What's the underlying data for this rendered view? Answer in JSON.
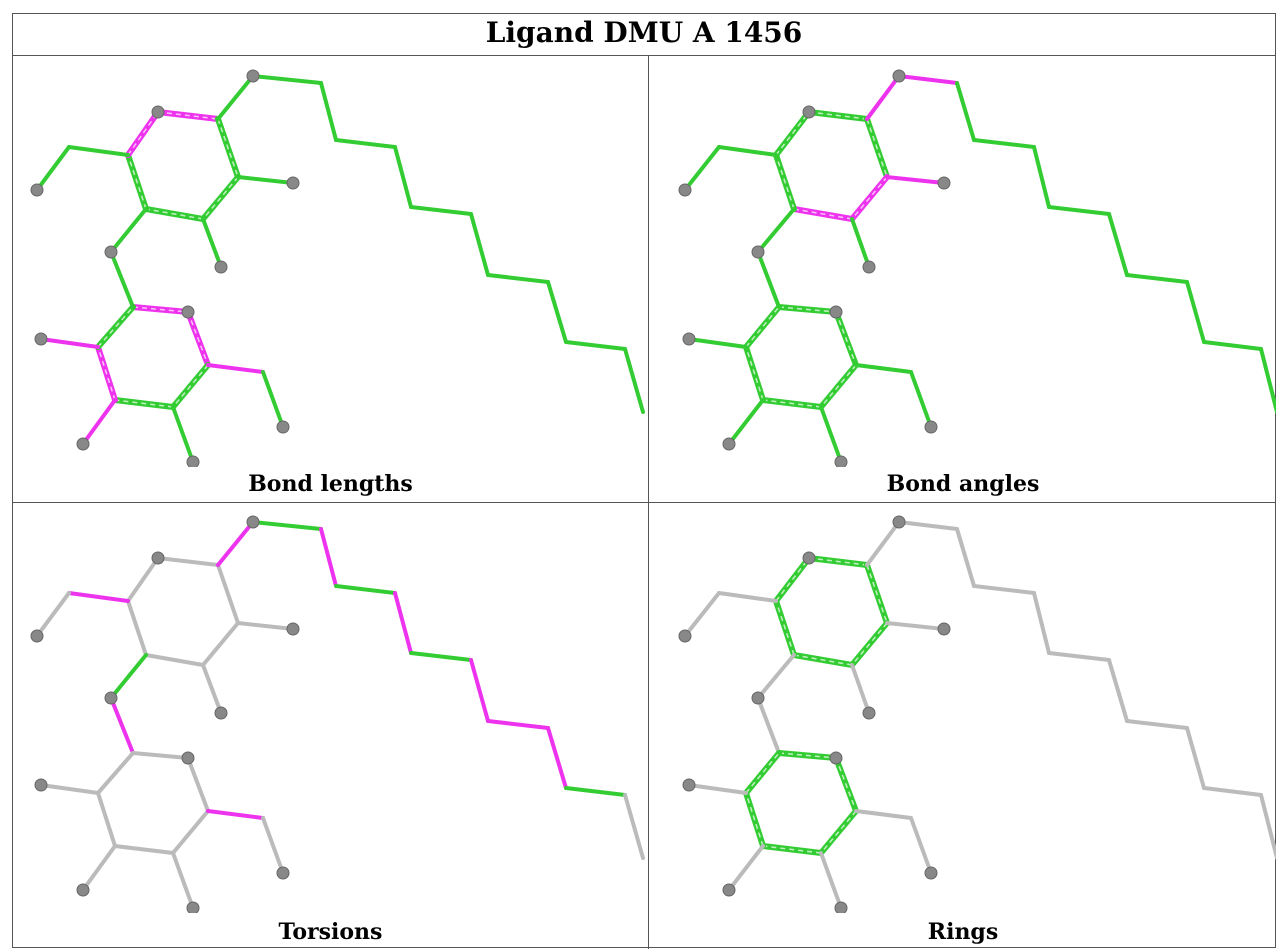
{
  "title": "Ligand DMU A 1456",
  "colors": {
    "good": "#33cc33",
    "outlier": "#ee33ee",
    "neutral": "#bbbbbb",
    "atom": "#888888"
  },
  "panels": [
    {
      "caption": "Bond lengths"
    },
    {
      "caption": "Bond angles"
    },
    {
      "caption": "Torsions"
    },
    {
      "caption": "Rings"
    }
  ]
}
